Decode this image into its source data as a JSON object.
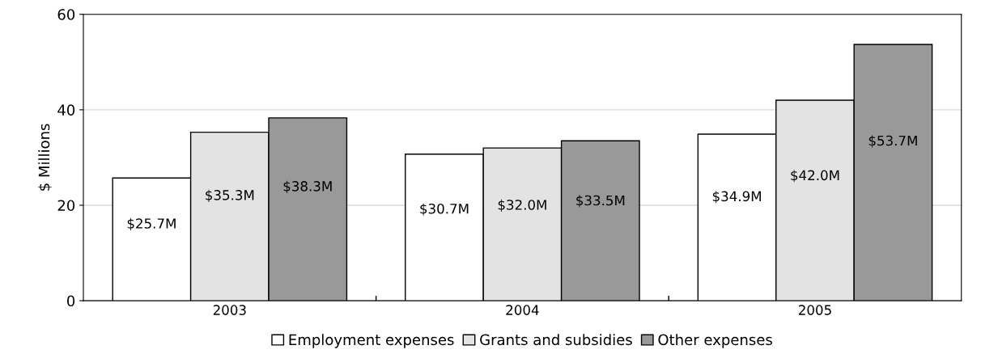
{
  "chart_data": {
    "type": "bar",
    "ylabel": "$ Millions",
    "categories": [
      "2003",
      "2004",
      "2005"
    ],
    "series": [
      {
        "name": "Employment expenses",
        "color": "#ffffff",
        "values": [
          25.7,
          30.7,
          34.9
        ],
        "value_labels": [
          "$25.7M",
          "$30.7M",
          "$34.9M"
        ]
      },
      {
        "name": "Grants and subsidies",
        "color": "#e3e3e3",
        "values": [
          35.3,
          32.0,
          42.0
        ],
        "value_labels": [
          "$35.3M",
          "$32.0M",
          "$42.0M"
        ]
      },
      {
        "name": "Other expenses",
        "color": "#999999",
        "values": [
          38.3,
          33.5,
          53.7
        ],
        "value_labels": [
          "$38.3M",
          "$33.5M",
          "$53.7M"
        ]
      }
    ],
    "ylim": [
      0,
      60
    ],
    "yticks": [
      0,
      20,
      40,
      60
    ],
    "grid": "y",
    "legend": "bottom"
  }
}
